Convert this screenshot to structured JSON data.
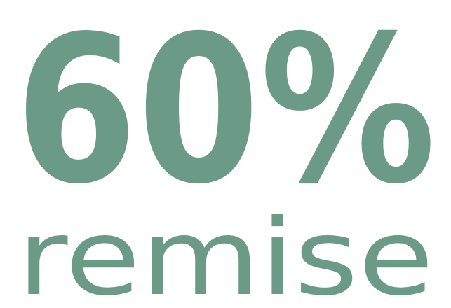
{
  "badge": {
    "percent": "60%",
    "label": "remise",
    "color": "#6b9a86",
    "background": "#ffffff"
  }
}
